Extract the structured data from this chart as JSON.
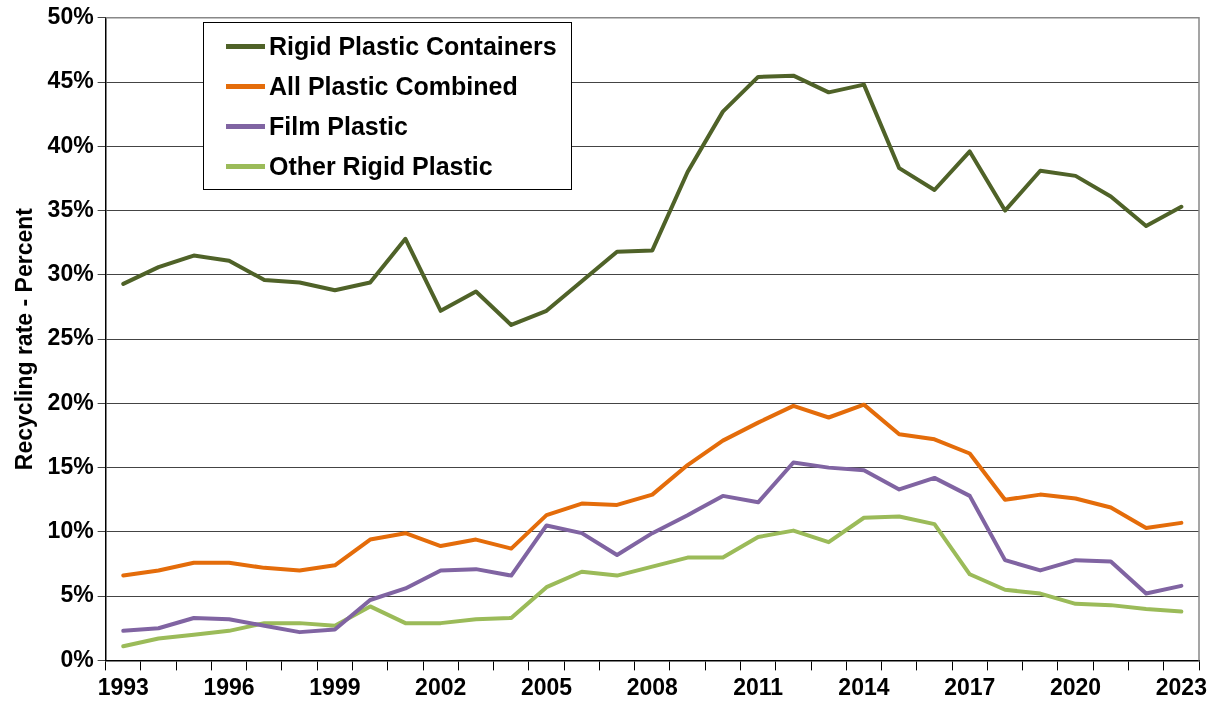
{
  "chart_data": {
    "type": "line",
    "ylabel": "Recycling rate - Percent",
    "categories": [
      "1993",
      null,
      null,
      "1996",
      null,
      null,
      "1999",
      null,
      null,
      "2002",
      null,
      null,
      "2005",
      null,
      null,
      "2008",
      null,
      null,
      "2011",
      null,
      null,
      "2014",
      null,
      null,
      "2017",
      null,
      null,
      "2020",
      null,
      null,
      "2023"
    ],
    "series": [
      {
        "name": "Rigid Plastic Containers",
        "color": "#4f6228",
        "values": [
          29.3,
          30.6,
          31.5,
          31.1,
          29.6,
          29.4,
          28.8,
          29.4,
          32.8,
          27.2,
          28.7,
          26.1,
          27.2,
          29.5,
          31.8,
          31.9,
          38.0,
          42.7,
          45.4,
          45.5,
          44.2,
          44.8,
          38.3,
          36.6,
          39.6,
          35.0,
          38.1,
          37.7,
          36.1,
          33.8,
          35.3
        ]
      },
      {
        "name": "All Plastic Combined",
        "color": "#e46c0a",
        "values": [
          6.6,
          7.0,
          7.6,
          7.6,
          7.2,
          7.0,
          7.4,
          9.4,
          9.9,
          8.9,
          9.4,
          8.7,
          11.3,
          12.2,
          12.1,
          12.9,
          15.2,
          17.1,
          18.5,
          19.8,
          18.9,
          19.9,
          17.6,
          17.2,
          16.1,
          12.5,
          12.9,
          12.6,
          11.9,
          10.3,
          10.7
        ]
      },
      {
        "name": "Film Plastic",
        "color": "#8064a2",
        "values": [
          2.3,
          2.5,
          3.3,
          3.2,
          2.7,
          2.2,
          2.4,
          4.7,
          5.6,
          7.0,
          7.1,
          6.6,
          10.5,
          9.9,
          8.2,
          9.9,
          11.3,
          12.8,
          12.3,
          15.4,
          15.0,
          14.8,
          13.3,
          14.2,
          12.8,
          7.8,
          7.0,
          7.8,
          7.7,
          5.2,
          5.8
        ]
      },
      {
        "name": "Other Rigid Plastic",
        "color": "#9bbb59",
        "values": [
          1.1,
          1.7,
          2.0,
          2.3,
          2.9,
          2.9,
          2.7,
          4.2,
          2.9,
          2.9,
          3.2,
          3.3,
          5.7,
          6.9,
          6.6,
          7.3,
          8.0,
          8.0,
          9.6,
          10.1,
          9.2,
          11.1,
          11.2,
          10.6,
          6.7,
          5.5,
          5.2,
          4.4,
          4.3,
          4.0,
          3.8
        ]
      }
    ],
    "ylim": [
      0,
      50
    ],
    "yticks": [
      {
        "value": 0,
        "label": "0%"
      },
      {
        "value": 5,
        "label": "5%"
      },
      {
        "value": 10,
        "label": "10%"
      },
      {
        "value": 15,
        "label": "15%"
      },
      {
        "value": 20,
        "label": "20%"
      },
      {
        "value": 25,
        "label": "25%"
      },
      {
        "value": 30,
        "label": "30%"
      },
      {
        "value": 35,
        "label": "35%"
      },
      {
        "value": 40,
        "label": "40%"
      },
      {
        "value": 45,
        "label": "45%"
      },
      {
        "value": 50,
        "label": "50%"
      }
    ],
    "grid": "y",
    "legend": "top left",
    "marker": "none",
    "line_style": "solid"
  }
}
